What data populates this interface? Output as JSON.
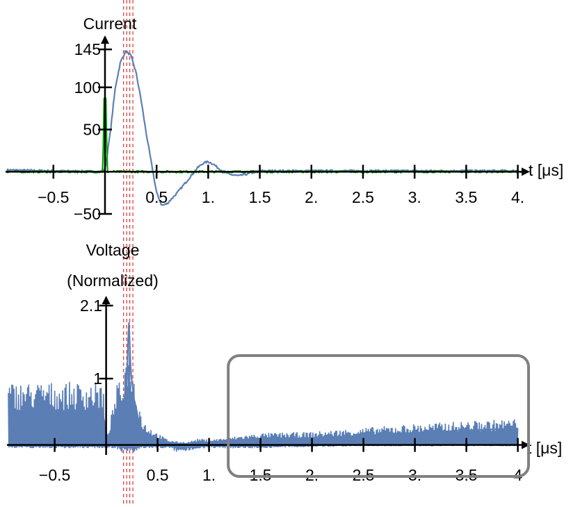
{
  "chart_data": [
    {
      "type": "line",
      "title": "Current",
      "xlabel": "t [μs]",
      "ylabel": "",
      "xlim": [
        -0.95,
        4.05
      ],
      "ylim": [
        -50,
        150
      ],
      "x_ticks": [
        -0.5,
        0.5,
        1,
        1.5,
        2,
        2.5,
        3,
        3.5,
        4
      ],
      "x_tick_labels": [
        "−0.5",
        "0.5",
        "1.",
        "1.5",
        "2.",
        "2.5",
        "3.",
        "3.5",
        "4."
      ],
      "y_ticks": [
        -50,
        50,
        100,
        145
      ],
      "y_tick_labels": [
        "−50",
        "50",
        "100",
        "145"
      ],
      "grid": false,
      "series": [
        {
          "color": "#5b7fb5",
          "x": [
            -0.95,
            -0.5,
            -0.05,
            0,
            0.05,
            0.1,
            0.15,
            0.2,
            0.25,
            0.3,
            0.35,
            0.4,
            0.45,
            0.5,
            0.55,
            0.6,
            0.7,
            0.8,
            0.9,
            0.95,
            1.0,
            1.05,
            1.1,
            1.2,
            1.3,
            1.4,
            1.5,
            2.0,
            2.5,
            3.0,
            3.5,
            4.0
          ],
          "y": [
            2,
            1,
            0,
            3,
            45,
            100,
            130,
            143,
            138,
            118,
            85,
            45,
            10,
            -25,
            -40,
            -38,
            -25,
            -10,
            5,
            10,
            12,
            9,
            4,
            -3,
            -5,
            -2,
            1,
            1,
            1,
            1,
            1,
            1
          ]
        },
        {
          "color": "#00a000",
          "x": [
            -0.95,
            -0.02,
            -0.01,
            0.0,
            0.01,
            0.02,
            0.05,
            1.0,
            4.05
          ],
          "y": [
            0,
            0,
            85,
            88,
            85,
            0,
            0,
            0,
            0
          ]
        }
      ],
      "reference_lines_x": [
        0.18,
        0.21,
        0.24,
        0.27
      ],
      "reference_line_color": "#e03030"
    },
    {
      "type": "line",
      "title": "Voltage",
      "subtitle": "(Normalized)",
      "xlabel": "t [μs]",
      "ylabel": "",
      "xlim": [
        -0.95,
        4.05
      ],
      "ylim": [
        -0.15,
        2.1
      ],
      "x_ticks": [
        -0.5,
        0.5,
        1,
        1.5,
        2,
        2.5,
        3,
        3.5,
        4
      ],
      "x_tick_labels": [
        "−0.5",
        "0.5",
        "1.",
        "1.5",
        "2.",
        "2.5",
        "3.",
        "3.5",
        "4"
      ],
      "y_ticks": [
        1,
        2.1
      ],
      "y_tick_labels": [
        "1",
        "2.1"
      ],
      "grid": false,
      "series": [
        {
          "color": "#5b7fb5",
          "x": [
            -0.95,
            -0.5,
            -0.03,
            0.02,
            0.08,
            0.12,
            0.16,
            0.2,
            0.22,
            0.24,
            0.27,
            0.3,
            0.33,
            0.36,
            0.4,
            0.5,
            0.6,
            0.7,
            0.8,
            0.9,
            1.0,
            1.1,
            1.2,
            1.5,
            2.0,
            2.5,
            3.0,
            3.5,
            4.0
          ],
          "y": [
            0.45,
            0.45,
            0.45,
            0.05,
            0.2,
            0.4,
            0.6,
            0.85,
            1.9,
            1.1,
            0.7,
            0.5,
            0.2,
            0.15,
            0.1,
            0.05,
            0.0,
            -0.05,
            0.0,
            0.05,
            0.02,
            -0.02,
            0.03,
            0.08,
            0.1,
            0.14,
            0.18,
            0.22,
            0.25
          ],
          "envelope_band": [
            [
              -0.95,
              0.95,
              -0.05
            ],
            [
              -0.03,
              0.95,
              -0.05
            ],
            [
              0.0,
              0.1,
              -0.05
            ],
            [
              0.05,
              0.45,
              -0.05
            ],
            [
              0.1,
              0.9,
              -0.05
            ],
            [
              0.15,
              1.0,
              -0.12
            ],
            [
              0.2,
              1.4,
              -0.1
            ],
            [
              0.22,
              2.0,
              -0.1
            ],
            [
              0.25,
              1.2,
              -0.15
            ],
            [
              0.3,
              0.85,
              -0.1
            ],
            [
              0.35,
              0.4,
              -0.05
            ],
            [
              0.4,
              0.3,
              -0.05
            ],
            [
              0.5,
              0.18,
              -0.05
            ],
            [
              0.6,
              0.08,
              -0.05
            ],
            [
              0.7,
              0.05,
              -0.12
            ],
            [
              0.8,
              0.05,
              -0.1
            ],
            [
              0.9,
              0.1,
              -0.05
            ],
            [
              1.0,
              0.08,
              -0.05
            ],
            [
              1.2,
              0.12,
              -0.05
            ],
            [
              1.5,
              0.18,
              -0.05
            ],
            [
              2.0,
              0.2,
              -0.03
            ],
            [
              2.5,
              0.26,
              -0.02
            ],
            [
              3.0,
              0.32,
              -0.02
            ],
            [
              3.5,
              0.36,
              -0.02
            ],
            [
              4.0,
              0.4,
              -0.02
            ]
          ]
        }
      ],
      "reference_lines_x": [
        0.18,
        0.21,
        0.24,
        0.27
      ],
      "reference_line_color": "#e03030",
      "highlight_box": {
        "x_from": 1.2,
        "x_to": 4.05,
        "color": "#808080"
      }
    }
  ]
}
